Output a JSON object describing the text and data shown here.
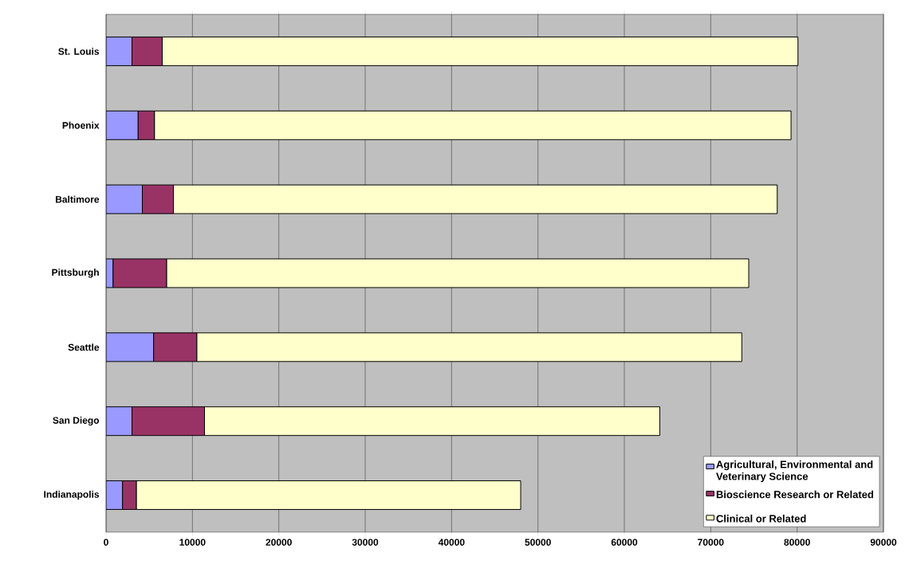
{
  "chart_data": {
    "type": "bar",
    "orientation": "horizontal",
    "stacked": true,
    "categories": [
      "St. Louis",
      "Phoenix",
      "Baltimore",
      "Pittsburgh",
      "Seattle",
      "San Diego",
      "Indianapolis"
    ],
    "series": [
      {
        "name": "Agricultural, Environmental and Veterinary Science",
        "color": "#9999ff",
        "values": [
          3000,
          3700,
          4200,
          800,
          5500,
          3000,
          1900
        ]
      },
      {
        "name": "Bioscience Research or Related",
        "color": "#993366",
        "values": [
          3500,
          1900,
          3600,
          6200,
          5000,
          8400,
          1600
        ]
      },
      {
        "name": "Clinical or Related",
        "color": "#ffffcc",
        "values": [
          73600,
          73700,
          69900,
          67400,
          63100,
          52700,
          44500
        ]
      }
    ],
    "xlim": [
      0,
      90000
    ],
    "xticks": [
      0,
      10000,
      20000,
      30000,
      40000,
      50000,
      60000,
      70000,
      80000,
      90000
    ],
    "grid": "x",
    "legend": "bottom right"
  }
}
